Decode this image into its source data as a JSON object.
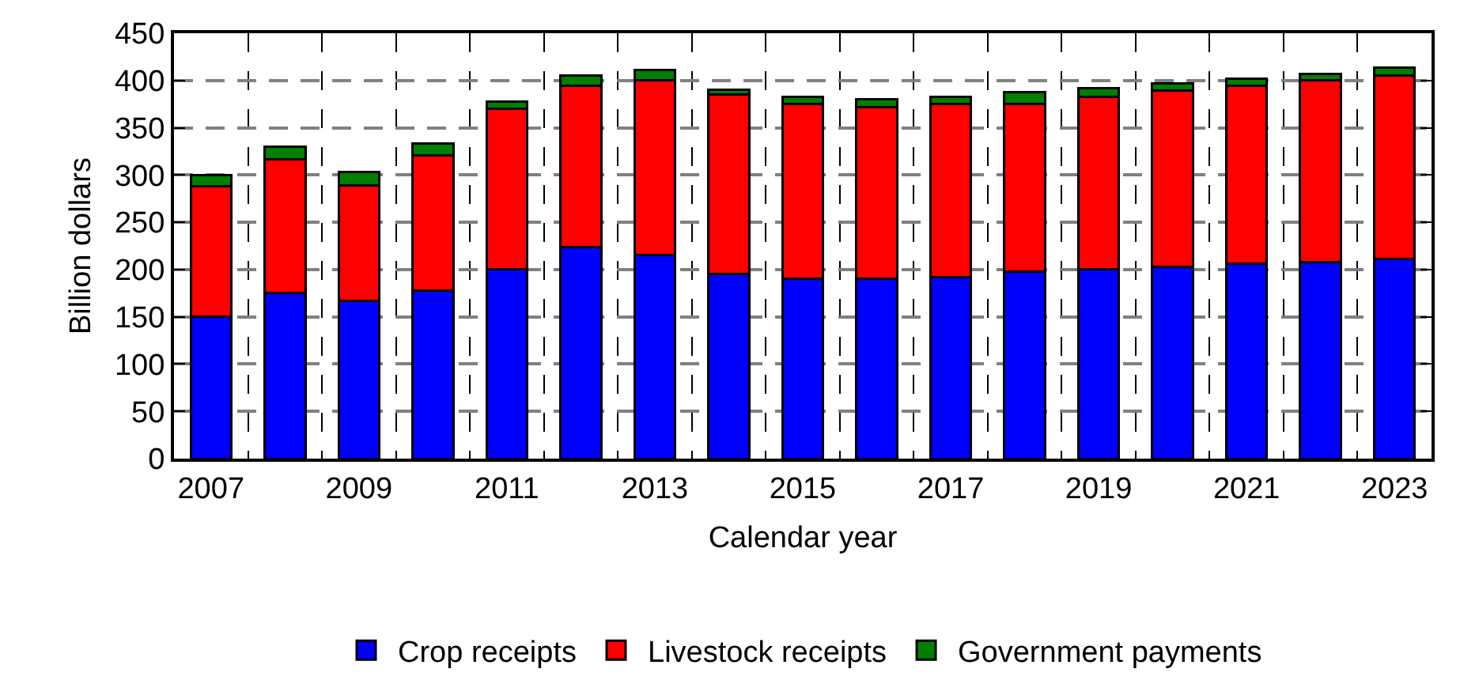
{
  "chart_data": {
    "type": "bar",
    "stacked": true,
    "xlabel": "Calendar year",
    "ylabel": "Billion dollars",
    "categories": [
      "2007",
      null,
      "2009",
      null,
      "2011",
      null,
      "2013",
      null,
      "2015",
      null,
      "2017",
      null,
      "2019",
      null,
      "2021",
      null,
      "2023"
    ],
    "series": [
      {
        "name": "Crop receipts",
        "color": "#0000ff",
        "values": [
          150,
          175,
          167,
          178,
          200,
          224,
          215,
          195,
          190,
          190,
          192,
          198,
          200,
          203,
          206,
          208,
          211
        ]
      },
      {
        "name": "Livestock receipts",
        "color": "#ff0000",
        "values": [
          138,
          142,
          122,
          143,
          170,
          170,
          185,
          190,
          185,
          182,
          183,
          177,
          183,
          186,
          188,
          192,
          194
        ]
      },
      {
        "name": "Government payments",
        "color": "#008000",
        "values": [
          12,
          13,
          14,
          12,
          8,
          11,
          11,
          5,
          8,
          8,
          8,
          13,
          9,
          8,
          8,
          7,
          9
        ]
      }
    ],
    "ylim": [
      0,
      450
    ],
    "yticks": [
      0,
      50,
      100,
      150,
      200,
      250,
      300,
      350,
      400,
      450
    ],
    "grid": true,
    "legend": "bottom"
  }
}
